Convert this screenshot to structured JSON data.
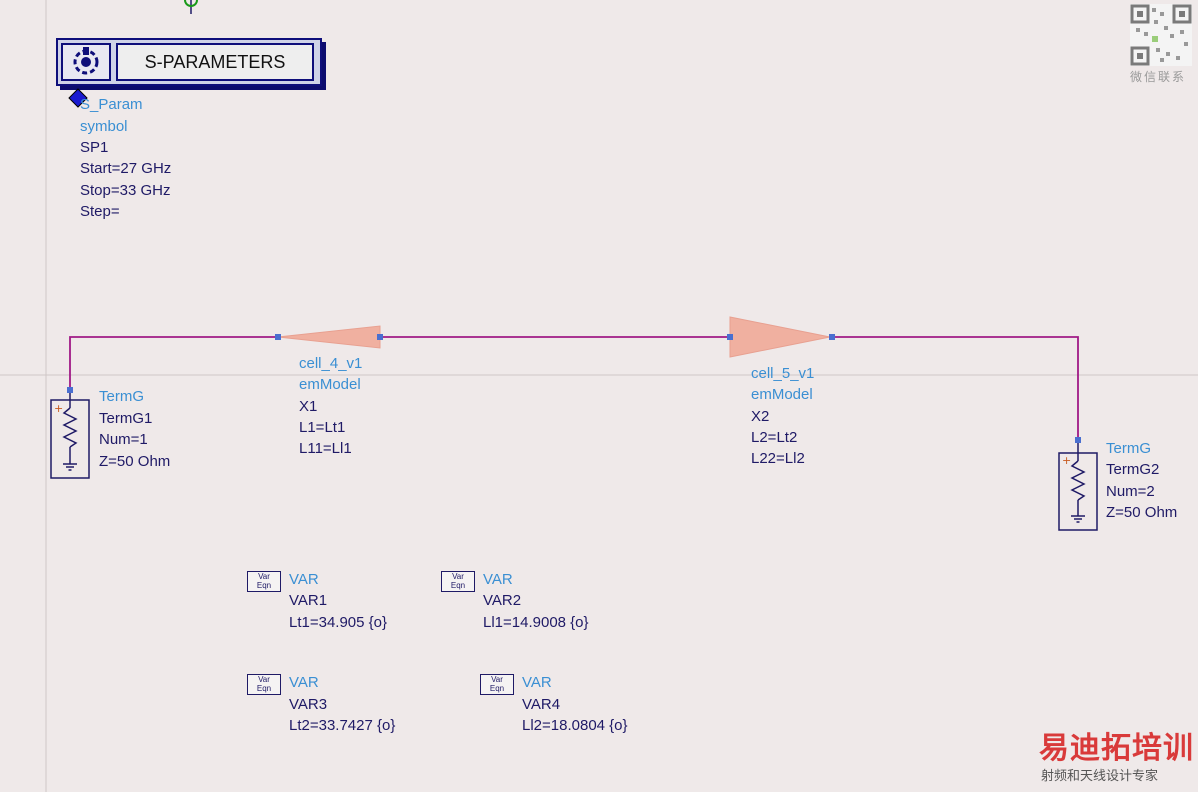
{
  "sparam_block": {
    "title": "S-PARAMETERS",
    "lines": [
      "S_Param",
      "symbol",
      "SP1",
      "Start=27 GHz",
      "Stop=33 GHz",
      "Step="
    ]
  },
  "cell4": {
    "lines": [
      "cell_4_v1",
      "emModel",
      "X1",
      "L1=Lt1",
      "L11=Ll1"
    ]
  },
  "cell5": {
    "lines": [
      "cell_5_v1",
      "emModel",
      "X2",
      "L2=Lt2",
      "L22=Ll2"
    ]
  },
  "term1": {
    "lines": [
      "TermG",
      "TermG1",
      "Num=1",
      "Z=50 Ohm"
    ]
  },
  "term2": {
    "lines": [
      "TermG",
      "TermG2",
      "Num=2",
      "Z=50 Ohm"
    ]
  },
  "var_icon": {
    "top": "Var",
    "bottom": "Eqn"
  },
  "vars": [
    {
      "type": "VAR",
      "name": "VAR1",
      "expr": "Lt1=34.905 {o}"
    },
    {
      "type": "VAR",
      "name": "VAR2",
      "expr": "Ll1=14.9008 {o}"
    },
    {
      "type": "VAR",
      "name": "VAR3",
      "expr": "Lt2=33.7427 {o}"
    },
    {
      "type": "VAR",
      "name": "VAR4",
      "expr": "Ll2=18.0804 {o}"
    }
  ],
  "watermark": {
    "brand": "易迪拓培训",
    "tagline": "射频和天线设计专家",
    "qr_caption": "微信联系"
  },
  "colors": {
    "background": "#efe9e9",
    "wire": "#a01a86",
    "component": "#1f1a66",
    "label_cyan": "#3a8fd3",
    "em_model": "#f0b0a0"
  }
}
